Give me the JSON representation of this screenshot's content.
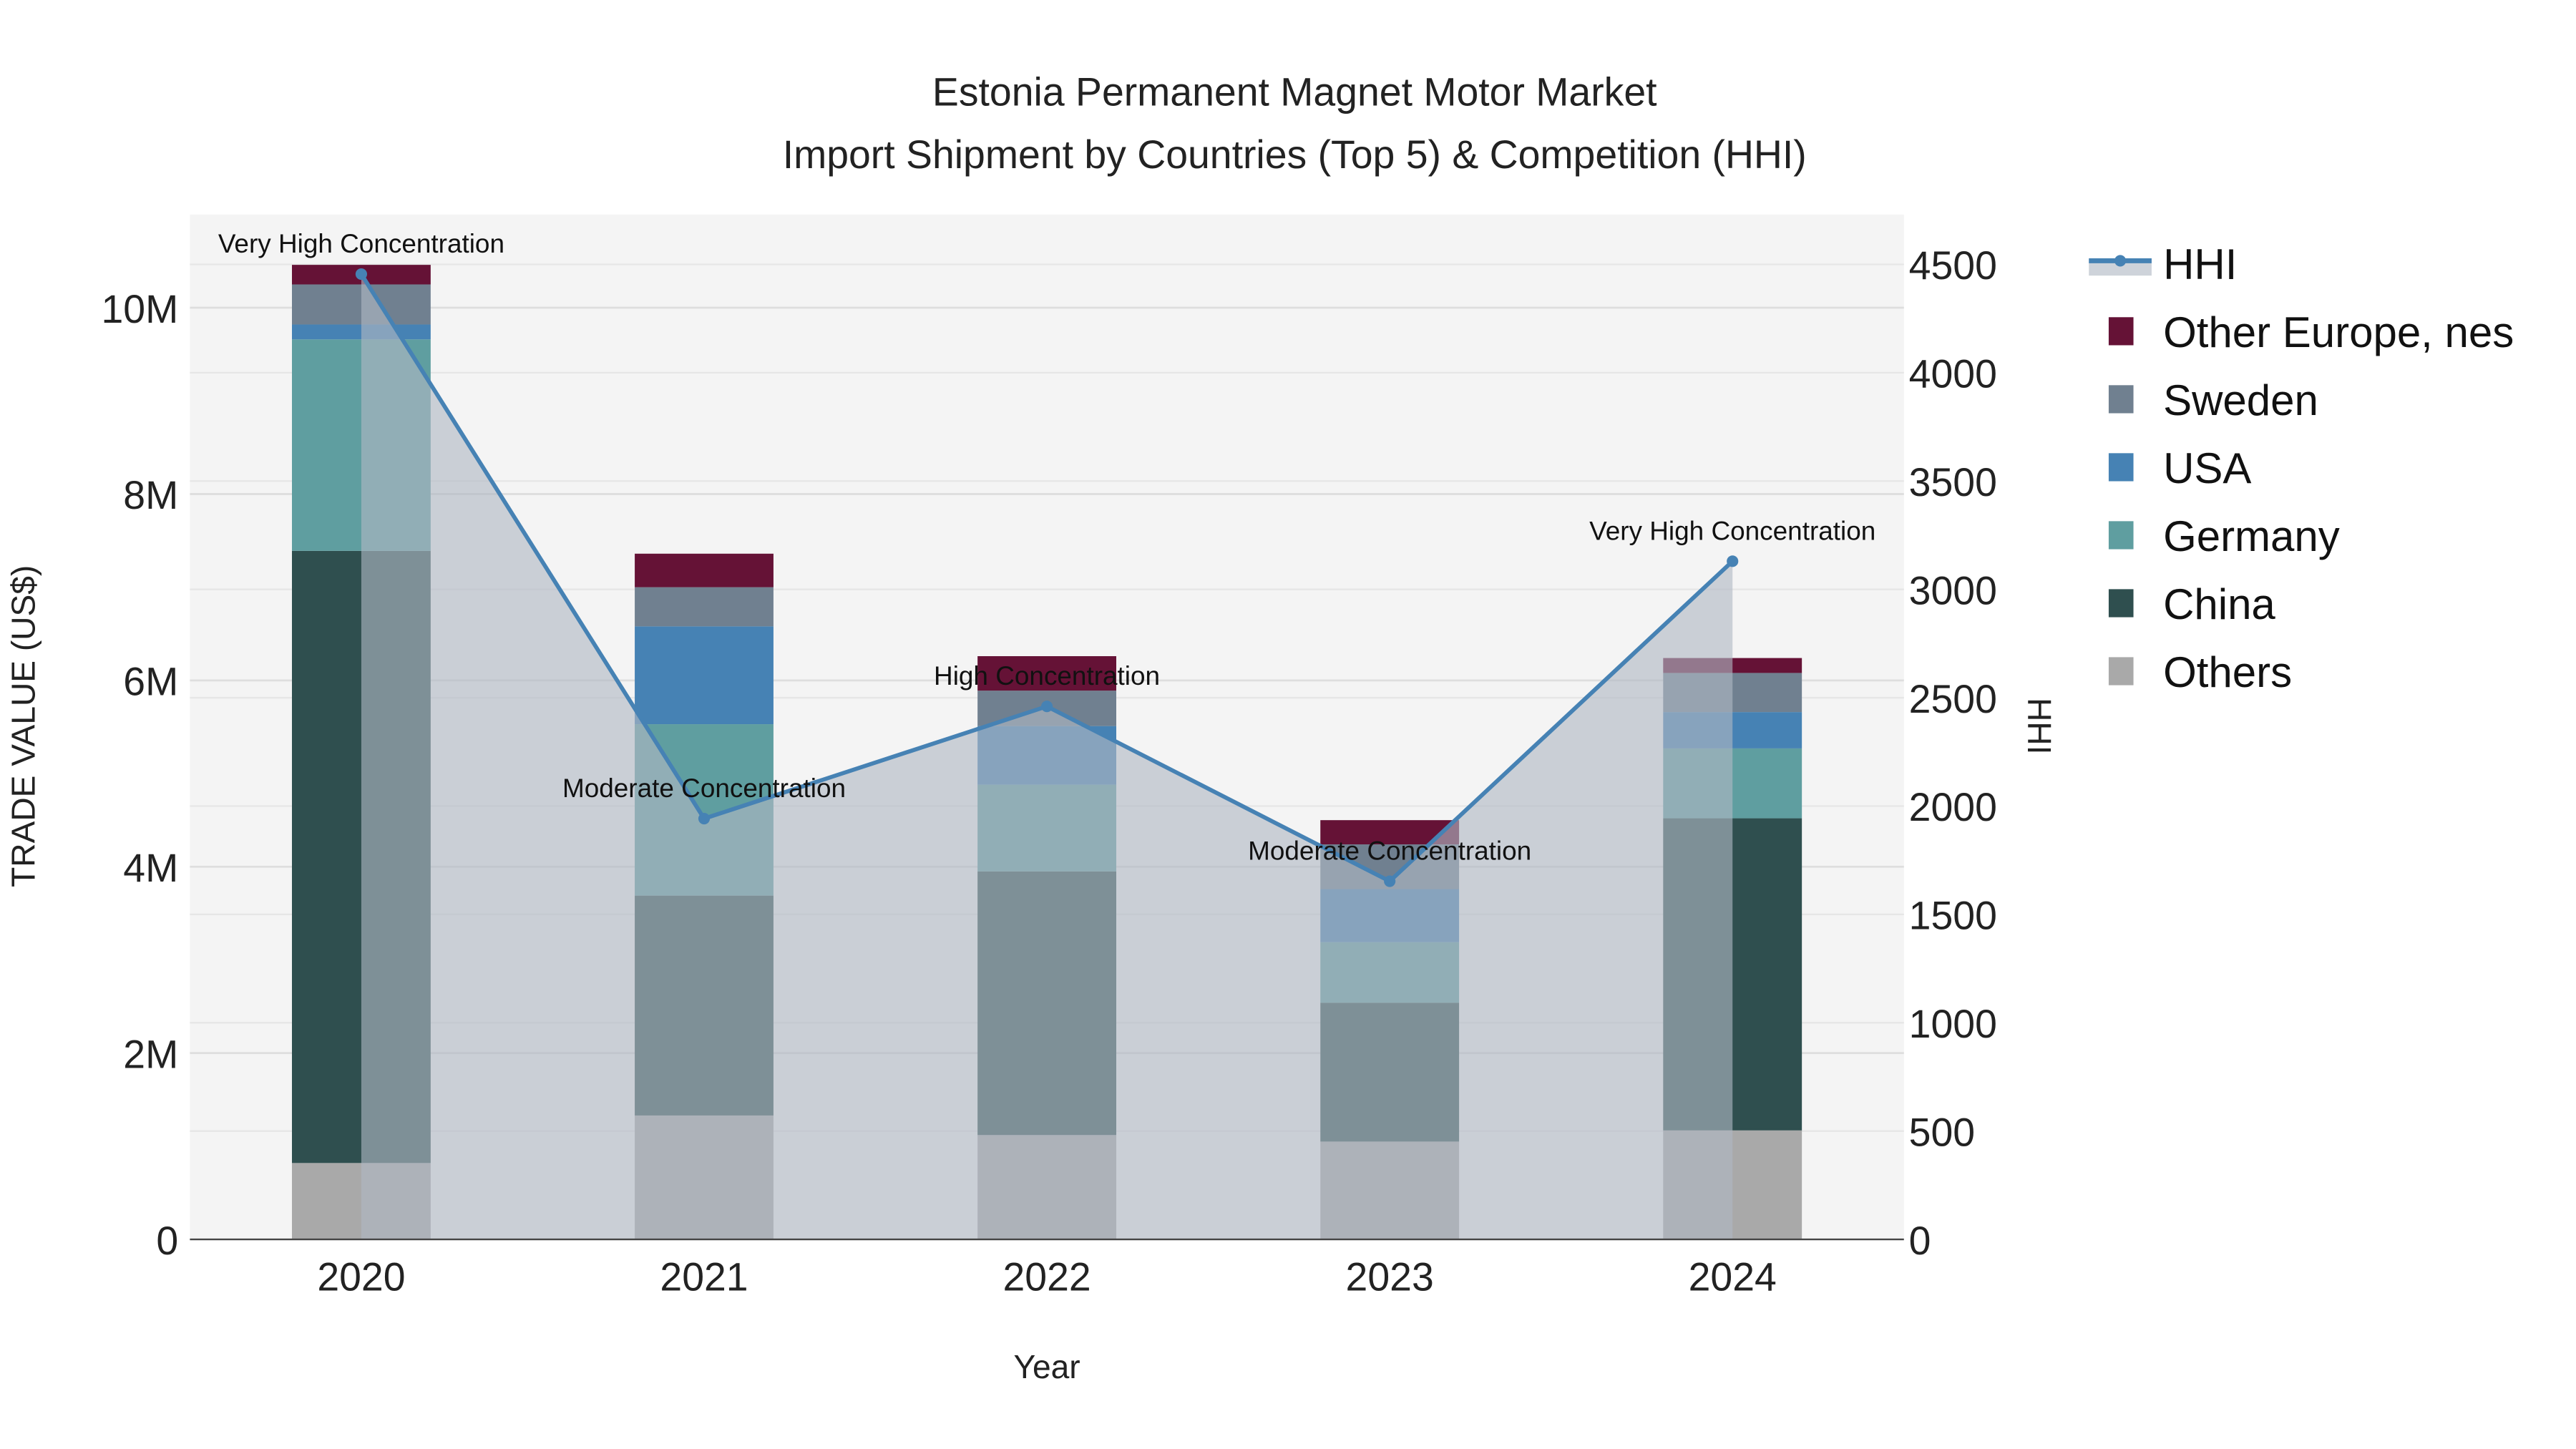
{
  "chart_data": {
    "type": "bar",
    "title_line1": "Estonia Permanent Magnet Motor Market",
    "title_line2": "Import Shipment by Countries (Top 5) & Competition (HHI)",
    "xlabel": "Year",
    "ylabel": "TRADE VALUE (US$)",
    "y2label": "HHI",
    "categories": [
      "2020",
      "2021",
      "2022",
      "2023",
      "2024"
    ],
    "ylim": [
      0,
      11000000
    ],
    "y2lim": [
      0,
      4730
    ],
    "yticks": [
      {
        "v": 0,
        "label": "0"
      },
      {
        "v": 2000000,
        "label": "2M"
      },
      {
        "v": 4000000,
        "label": "4M"
      },
      {
        "v": 6000000,
        "label": "6M"
      },
      {
        "v": 8000000,
        "label": "8M"
      },
      {
        "v": 10000000,
        "label": "10M"
      }
    ],
    "y2ticks": [
      {
        "v": 0,
        "label": "0"
      },
      {
        "v": 500,
        "label": "500"
      },
      {
        "v": 1000,
        "label": "1000"
      },
      {
        "v": 1500,
        "label": "1500"
      },
      {
        "v": 2000,
        "label": "2000"
      },
      {
        "v": 2500,
        "label": "2500"
      },
      {
        "v": 3000,
        "label": "3000"
      },
      {
        "v": 3500,
        "label": "3500"
      },
      {
        "v": 4000,
        "label": "4000"
      },
      {
        "v": 4500,
        "label": "4500"
      }
    ],
    "series": [
      {
        "name": "Others",
        "color": "#a9a9a9",
        "values": [
          820000,
          1330000,
          1120000,
          1050000,
          1170000
        ]
      },
      {
        "name": "China",
        "color": "#2f4f4f",
        "values": [
          6570000,
          2360000,
          2830000,
          1490000,
          3350000
        ]
      },
      {
        "name": "Germany",
        "color": "#5f9ea0",
        "values": [
          2270000,
          1840000,
          930000,
          650000,
          750000
        ]
      },
      {
        "name": "USA",
        "color": "#4682b4",
        "values": [
          160000,
          1050000,
          630000,
          570000,
          390000
        ]
      },
      {
        "name": "Sweden",
        "color": "#708090",
        "values": [
          430000,
          420000,
          380000,
          480000,
          420000
        ]
      },
      {
        "name": "Other Europe, nes",
        "color": "#651236",
        "values": [
          210000,
          360000,
          370000,
          260000,
          160000
        ]
      }
    ],
    "hhi": {
      "name": "HHI",
      "color": "#4682b4",
      "fill_color": "#b0b8c4",
      "values": [
        4455,
        1942,
        2460,
        1653,
        3130
      ],
      "annotations": [
        "Very High Concentration",
        "Moderate Concentration",
        "High Concentration",
        "Moderate Concentration",
        "Very High Concentration"
      ]
    },
    "legend_order": [
      "HHI",
      "Other Europe, nes",
      "Sweden",
      "USA",
      "Germany",
      "China",
      "Others"
    ],
    "legend_position": "right",
    "grid": true
  }
}
